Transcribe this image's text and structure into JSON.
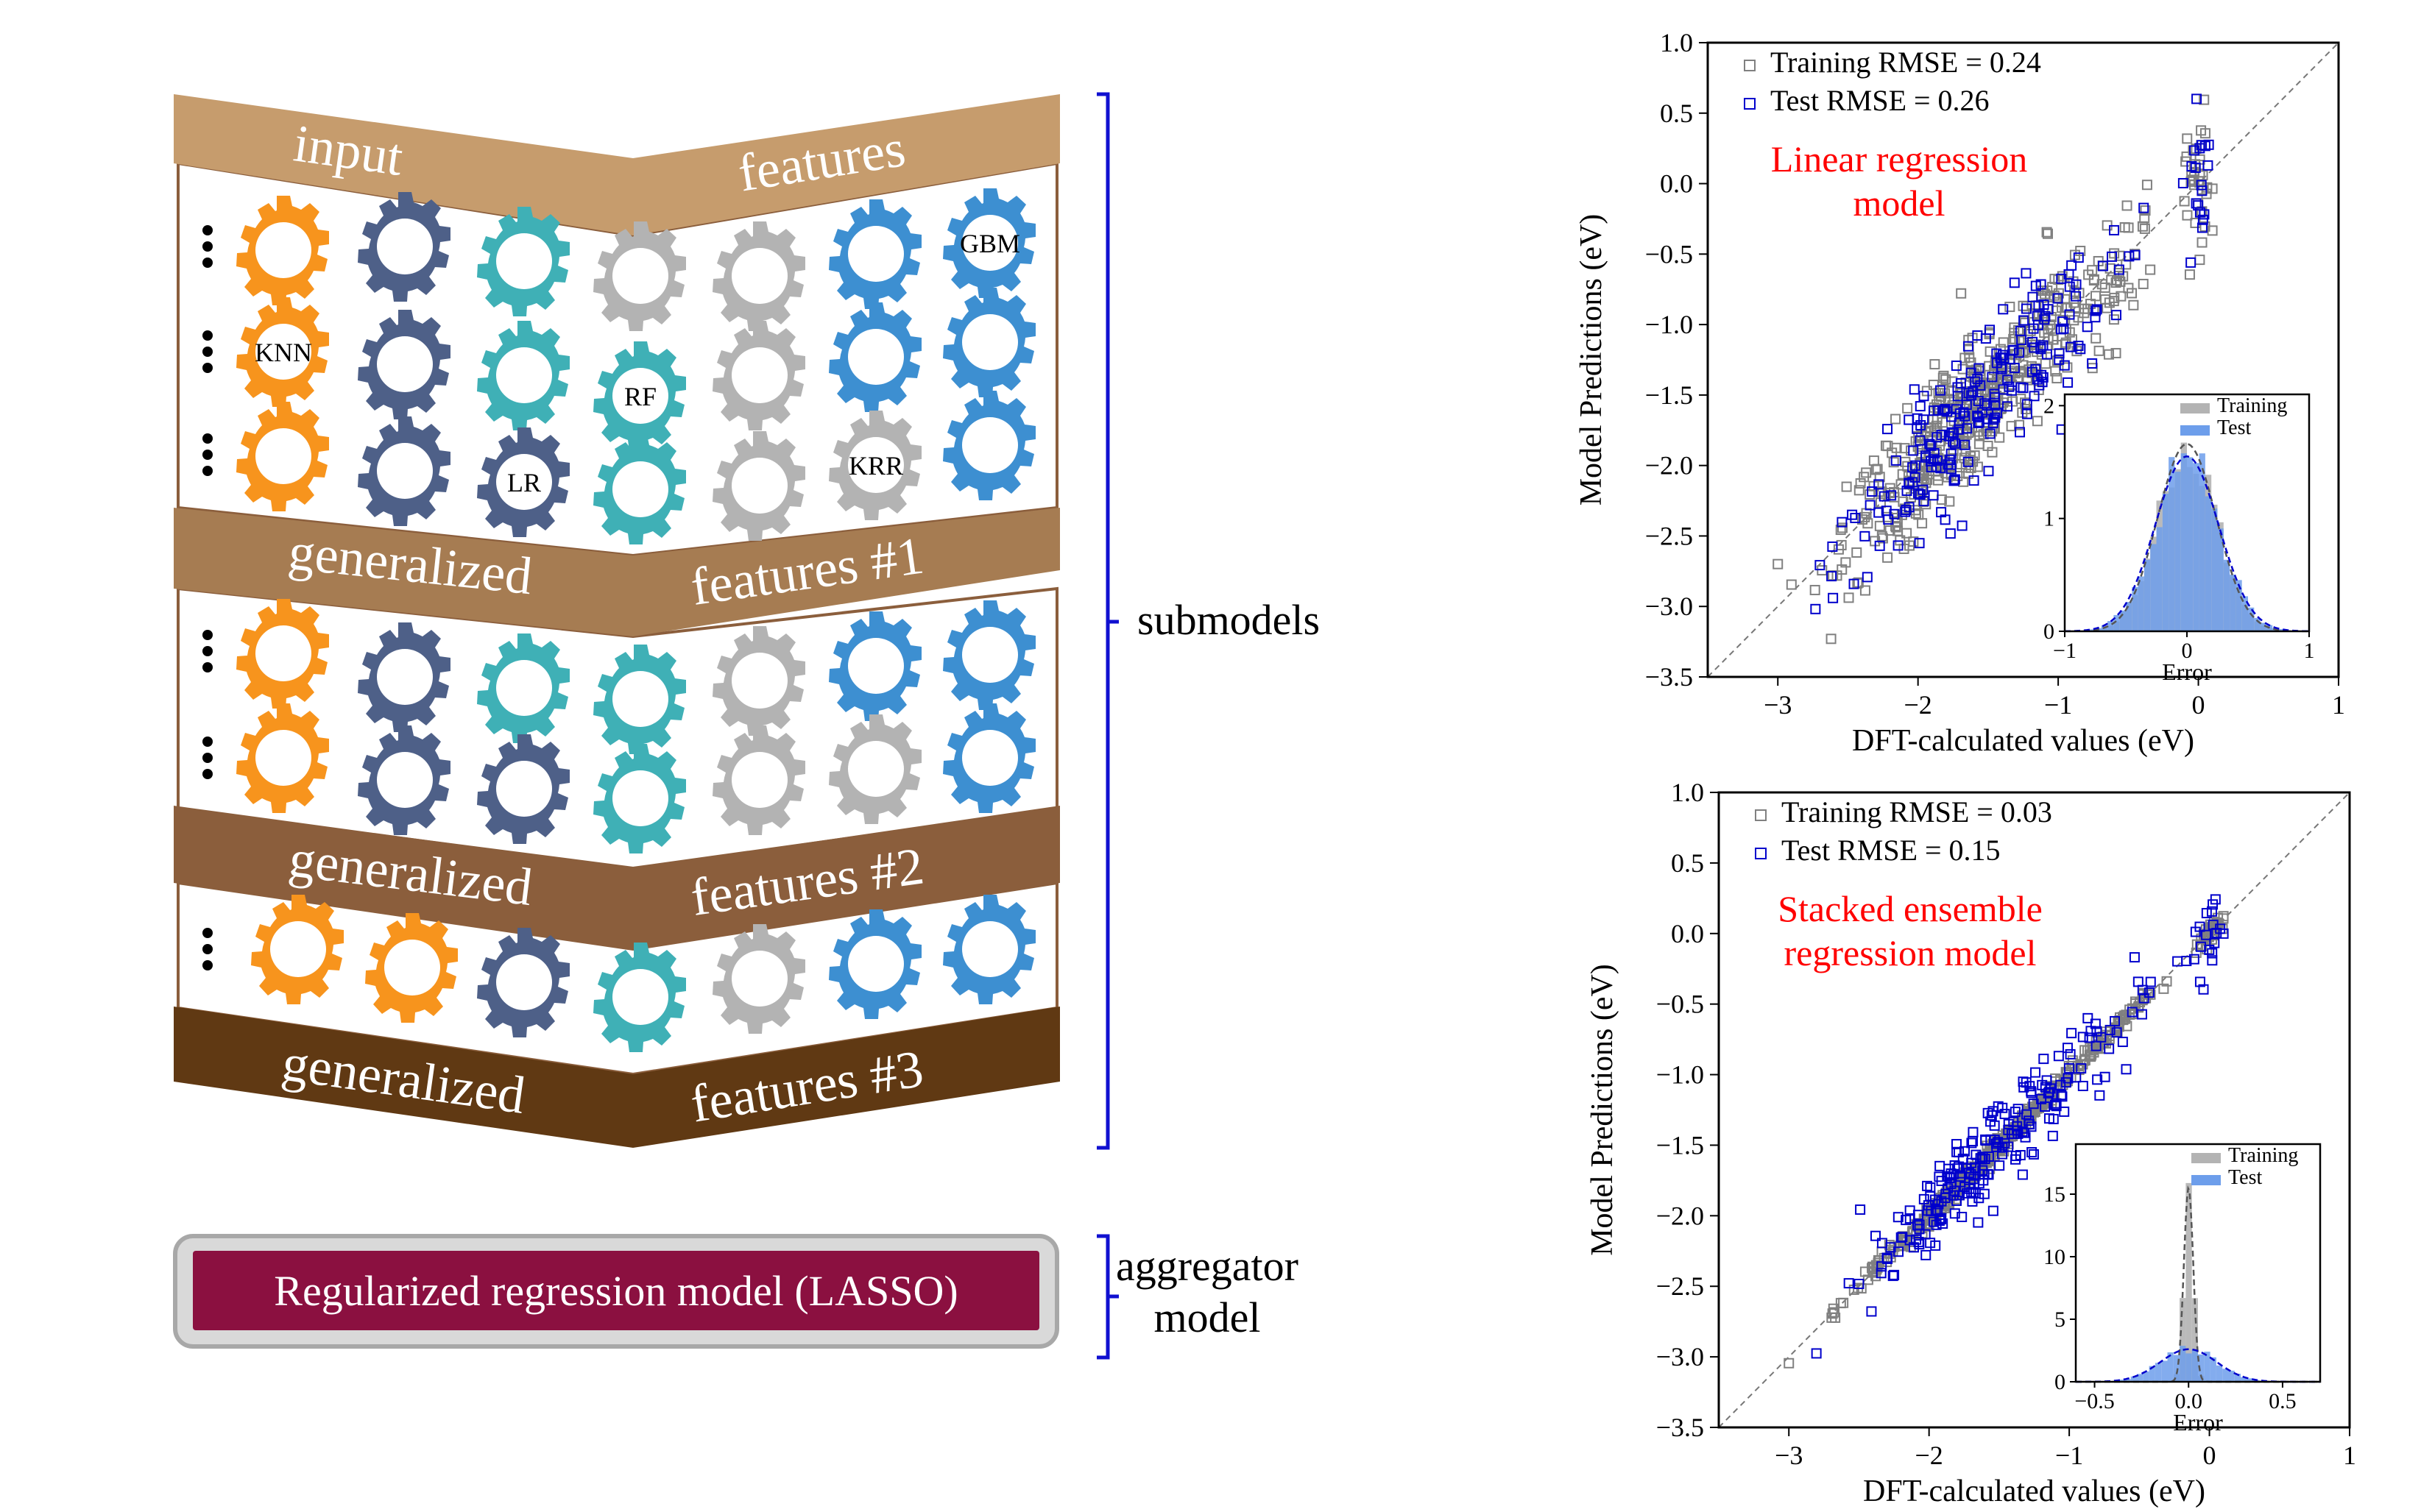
{
  "diagram": {
    "bands": [
      {
        "left": "input",
        "right": "features",
        "color": "#c69c6d",
        "text_color": "#ffffff"
      },
      {
        "left": "generalized",
        "right": "features #1",
        "color": "#a67c52",
        "text_color": "#ffffff"
      },
      {
        "left": "generalized",
        "right": "features #2",
        "color": "#8b5e3c",
        "text_color": "#ffffff"
      },
      {
        "left": "generalized",
        "right": "features #3",
        "color": "#603913",
        "text_color": "#ffffff"
      }
    ],
    "gear_colors": {
      "orange": "#f7941d",
      "navy": "#4e6088",
      "teal": "#3fb0b6",
      "gray": "#b3b3b3",
      "blue": "#3d8fd1"
    },
    "gear_labels": {
      "gbm": "GBM",
      "knn": "KNN",
      "rf": "RF",
      "lr": "LR",
      "krr": "KRR"
    },
    "bracket_color": "#1010d0",
    "submodels_label": "submodels",
    "aggregator_label_line1": "aggregator",
    "aggregator_label_line2": "model",
    "lasso_label": "Regularized regression model (LASSO)",
    "lasso_color": "#8b1040",
    "dots_symbol": "⋮"
  },
  "chart_data": [
    {
      "type": "scatter",
      "title": "",
      "annotation_line1": "Linear regression",
      "annotation_line2": "model",
      "annotation_color": "#ff0000",
      "xlabel": "DFT-calculated values (eV)",
      "ylabel": "Model Predictions (eV)",
      "xlim": [
        -3.5,
        1.0
      ],
      "ylim": [
        -3.5,
        1.0
      ],
      "xticks": [
        -3,
        -2,
        -1,
        0,
        1
      ],
      "yticks": [
        -3.5,
        -3.0,
        -2.5,
        -2.0,
        -1.5,
        -1.0,
        -0.5,
        0.0,
        0.5,
        1.0
      ],
      "xtick_labels": [
        "−3",
        "−2",
        "−1",
        "0",
        "1"
      ],
      "ytick_labels": [
        "−3.5",
        "−3.0",
        "−2.5",
        "−2.0",
        "−1.5",
        "−1.0",
        "−0.5",
        "0.0",
        "0.5",
        "1.0"
      ],
      "legend": [
        {
          "name": "Training RMSE = 0.24",
          "color": "#808080"
        },
        {
          "name": "Test RMSE = 0.26",
          "color": "#0000cc"
        }
      ],
      "series": [
        {
          "name": "Training RMSE = 0.24",
          "color": "#808080",
          "rmse": 0.24
        },
        {
          "name": "Test RMSE = 0.26",
          "color": "#0000cc",
          "rmse": 0.26
        }
      ],
      "inset": {
        "type": "histogram",
        "xlabel": "Error",
        "xlim": [
          -1.0,
          1.0
        ],
        "ylim": [
          0,
          2.1
        ],
        "xticks": [
          -1,
          0,
          1
        ],
        "xtick_labels": [
          "−1",
          "0",
          "1"
        ],
        "yticks": [
          0,
          1,
          2
        ],
        "ytick_labels": [
          "0",
          "1",
          "2"
        ],
        "legend": [
          {
            "name": "Training",
            "color": "#b3b3b3"
          },
          {
            "name": "Test",
            "color": "#6d9eeb"
          }
        ],
        "gauss_test_sigma": 0.26,
        "gauss_train_sigma": 0.24,
        "peak_train": 1.66,
        "peak_test": 1.55
      }
    },
    {
      "type": "scatter",
      "title": "",
      "annotation_line1": "Stacked ensemble",
      "annotation_line2": "regression model",
      "annotation_color": "#ff0000",
      "xlabel": "DFT-calculated values (eV)",
      "ylabel": "Model Predictions (eV)",
      "xlim": [
        -3.5,
        1.0
      ],
      "ylim": [
        -3.5,
        1.0
      ],
      "xticks": [
        -3,
        -2,
        -1,
        0,
        1
      ],
      "yticks": [
        -3.5,
        -3.0,
        -2.5,
        -2.0,
        -1.5,
        -1.0,
        -0.5,
        0.0,
        0.5,
        1.0
      ],
      "xtick_labels": [
        "−3",
        "−2",
        "−1",
        "0",
        "1"
      ],
      "ytick_labels": [
        "−3.5",
        "−3.0",
        "−2.5",
        "−2.0",
        "−1.5",
        "−1.0",
        "−0.5",
        "0.0",
        "0.5",
        "1.0"
      ],
      "legend": [
        {
          "name": "Training RMSE = 0.03",
          "color": "#808080"
        },
        {
          "name": "Test RMSE = 0.15",
          "color": "#0000cc"
        }
      ],
      "series": [
        {
          "name": "Training RMSE = 0.03",
          "color": "#808080",
          "rmse": 0.03
        },
        {
          "name": "Test RMSE = 0.15",
          "color": "#0000cc",
          "rmse": 0.15
        }
      ],
      "inset": {
        "type": "histogram",
        "xlabel": "Error",
        "xlim": [
          -0.6,
          0.7
        ],
        "ylim": [
          0,
          19
        ],
        "xticks": [
          -0.5,
          0.0,
          0.5
        ],
        "xtick_labels": [
          "−0.5",
          "0.0",
          "0.5"
        ],
        "yticks": [
          0,
          5,
          10,
          15
        ],
        "ytick_labels": [
          "0",
          "5",
          "10",
          "15"
        ],
        "legend": [
          {
            "name": "Training",
            "color": "#b3b3b3"
          },
          {
            "name": "Test",
            "color": "#6d9eeb"
          }
        ],
        "gauss_test_sigma": 0.15,
        "gauss_train_sigma": 0.025,
        "peak_train": 15.5,
        "peak_test": 2.6
      }
    }
  ]
}
